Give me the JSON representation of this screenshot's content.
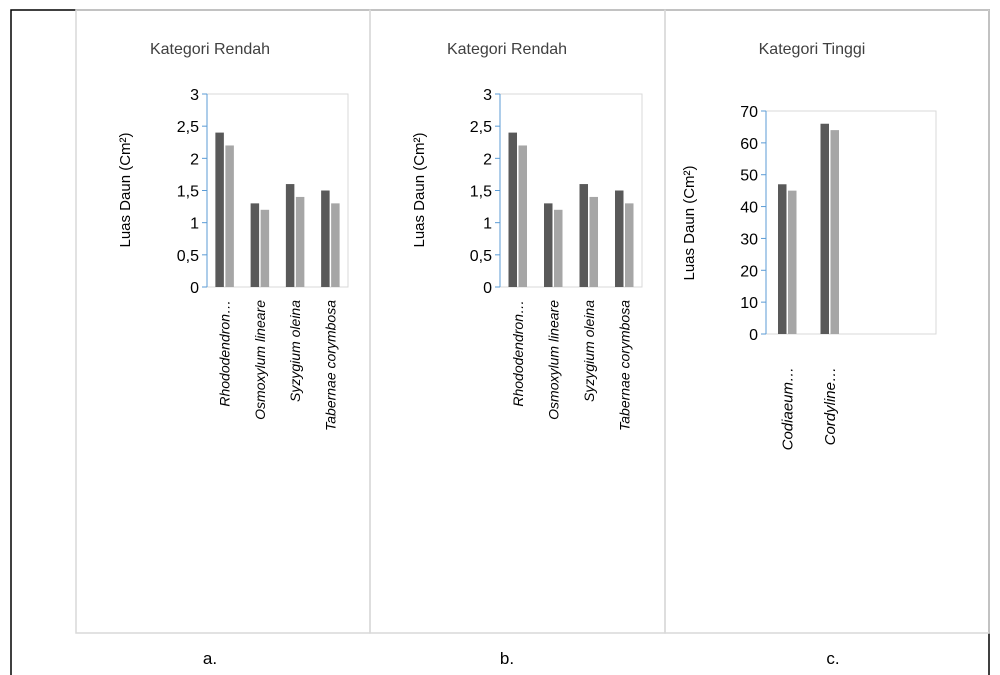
{
  "colors": {
    "series_dark": "#595959",
    "series_light": "#a6a6a6",
    "axis_blue": "#5b9bd5",
    "panel_border": "#d9d9d9",
    "frame": "#000000",
    "text": "#404040"
  },
  "chart_data": [
    {
      "type": "bar",
      "title": "Kategori Rendah",
      "ylabel": "Luas Daun (Cm²)",
      "categories": [
        "Rhododendron…",
        "Osmoxylum lineare",
        "Syzygium oleina",
        "Tabernae corymbosa"
      ],
      "series": [
        {
          "values": [
            2.4,
            1.3,
            1.6,
            1.5
          ]
        },
        {
          "values": [
            2.2,
            1.2,
            1.4,
            1.3
          ]
        }
      ],
      "ylim": [
        0,
        3
      ],
      "yticks": [
        "0",
        "0,5",
        "1",
        "1,5",
        "2",
        "2,5",
        "3"
      ],
      "panel_label": "a."
    },
    {
      "type": "bar",
      "title": "Kategori Rendah",
      "ylabel": "Luas Daun (Cm²)",
      "categories": [
        "Rhododendron…",
        "Osmoxylum lineare",
        "Syzygium oleina",
        "Tabernae corymbosa"
      ],
      "series": [
        {
          "values": [
            2.4,
            1.3,
            1.6,
            1.5
          ]
        },
        {
          "values": [
            2.2,
            1.2,
            1.4,
            1.3
          ]
        }
      ],
      "ylim": [
        0,
        3
      ],
      "yticks": [
        "0",
        "0,5",
        "1",
        "1,5",
        "2",
        "2,5",
        "3"
      ],
      "panel_label": "b."
    },
    {
      "type": "bar",
      "title": "Kategori Tinggi",
      "ylabel": "Luas Daun (Cm²)",
      "categories": [
        "Codiaeum…",
        "Cordyline…"
      ],
      "series": [
        {
          "values": [
            47,
            66
          ]
        },
        {
          "values": [
            45,
            64
          ]
        }
      ],
      "ylim": [
        0,
        70
      ],
      "yticks": [
        "0",
        "10",
        "20",
        "30",
        "40",
        "50",
        "60",
        "70"
      ],
      "panel_label": "c."
    }
  ]
}
